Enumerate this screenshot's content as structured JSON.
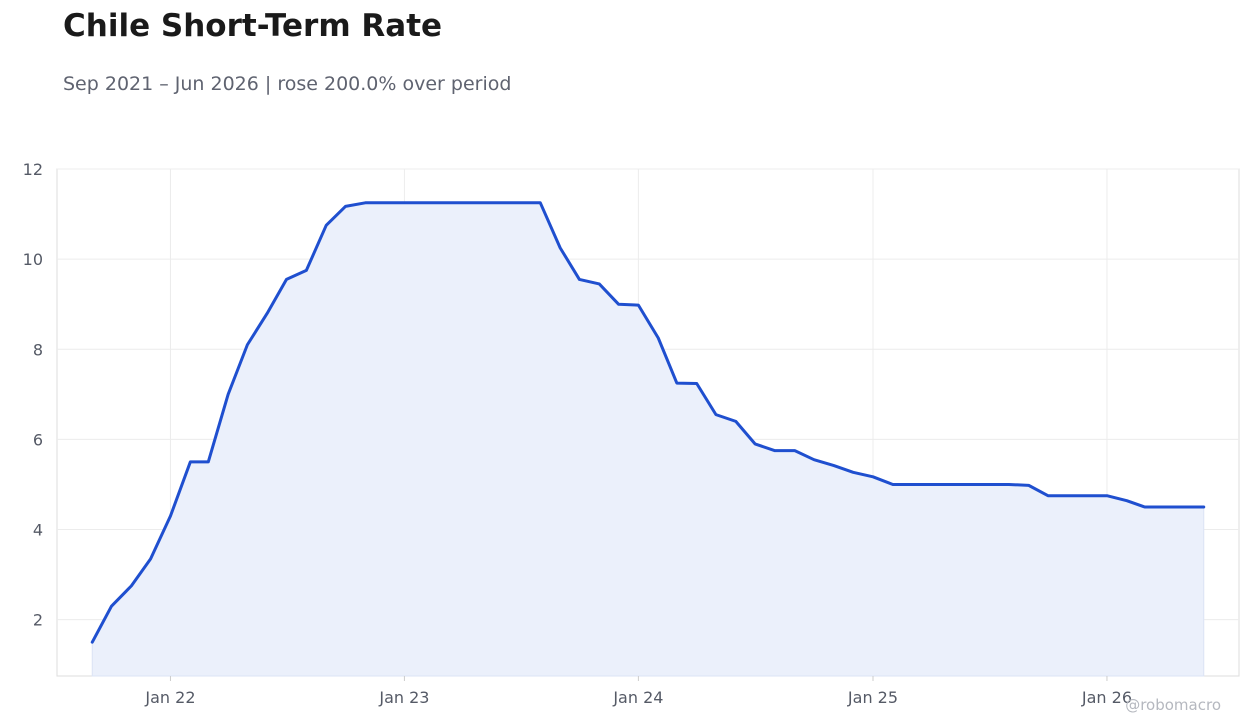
{
  "header": {
    "title": "Chile Short-Term Rate",
    "subtitle": "Sep 2021 – Jun 2026 | rose 200.0% over period"
  },
  "watermark": "@robomacro",
  "colors": {
    "line": "#1f4fcf",
    "fill": "#ebf0fb",
    "grid": "#ececec",
    "frame": "#dddddd"
  },
  "chart_data": {
    "type": "area",
    "title": "Chile Short-Term Rate",
    "subtitle": "Sep 2021 – Jun 2026 | rose 200.0% over period",
    "xlabel": "",
    "ylabel": "",
    "ylim": [
      0.75,
      12
    ],
    "yticks": [
      2,
      4,
      6,
      8,
      10,
      12
    ],
    "xlim": [
      "2021-07-08",
      "2026-07-26"
    ],
    "xticks": [
      {
        "date": "2022-01-01",
        "label": "Jan 22"
      },
      {
        "date": "2023-01-01",
        "label": "Jan 23"
      },
      {
        "date": "2024-01-01",
        "label": "Jan 24"
      },
      {
        "date": "2025-01-01",
        "label": "Jan 25"
      },
      {
        "date": "2026-01-01",
        "label": "Jan 26"
      }
    ],
    "grid": true,
    "legend": "none",
    "series": [
      {
        "x": [
          "2021-09-01",
          "2021-10-01",
          "2021-11-01",
          "2021-12-01",
          "2022-01-01",
          "2022-02-01",
          "2022-03-01",
          "2022-04-01",
          "2022-05-01",
          "2022-06-01",
          "2022-07-01",
          "2022-08-01",
          "2022-09-01",
          "2022-10-01",
          "2022-11-01",
          "2022-12-01",
          "2023-01-01",
          "2023-02-01",
          "2023-03-01",
          "2023-04-01",
          "2023-05-01",
          "2023-06-01",
          "2023-07-01",
          "2023-08-01",
          "2023-09-01",
          "2023-10-01",
          "2023-11-01",
          "2023-12-01",
          "2024-01-01",
          "2024-02-01",
          "2024-03-01",
          "2024-04-01",
          "2024-05-01",
          "2024-06-01",
          "2024-07-01",
          "2024-08-01",
          "2024-09-01",
          "2024-10-01",
          "2024-11-01",
          "2024-12-01",
          "2025-01-01",
          "2025-02-01",
          "2025-03-01",
          "2025-04-01",
          "2025-05-01",
          "2025-06-01",
          "2025-07-01",
          "2025-08-01",
          "2025-09-01",
          "2025-10-01",
          "2025-11-01",
          "2025-12-01",
          "2026-01-01",
          "2026-02-01",
          "2026-03-01",
          "2026-04-01",
          "2026-05-01",
          "2026-06-01"
        ],
        "values": [
          1.5,
          2.3,
          2.75,
          3.35,
          4.3,
          5.5,
          5.5,
          7.0,
          8.1,
          8.8,
          9.55,
          9.75,
          10.75,
          11.17,
          11.25,
          11.25,
          11.25,
          11.25,
          11.25,
          11.25,
          11.25,
          11.25,
          11.25,
          11.25,
          10.25,
          9.55,
          9.45,
          9.0,
          8.98,
          8.25,
          7.25,
          7.24,
          6.55,
          6.4,
          5.9,
          5.75,
          5.75,
          5.55,
          5.42,
          5.27,
          5.17,
          5.0,
          5.0,
          5.0,
          5.0,
          5.0,
          5.0,
          5.0,
          4.98,
          4.75,
          4.75,
          4.75,
          4.75,
          4.64,
          4.5,
          4.5,
          4.5,
          4.5
        ]
      }
    ]
  }
}
